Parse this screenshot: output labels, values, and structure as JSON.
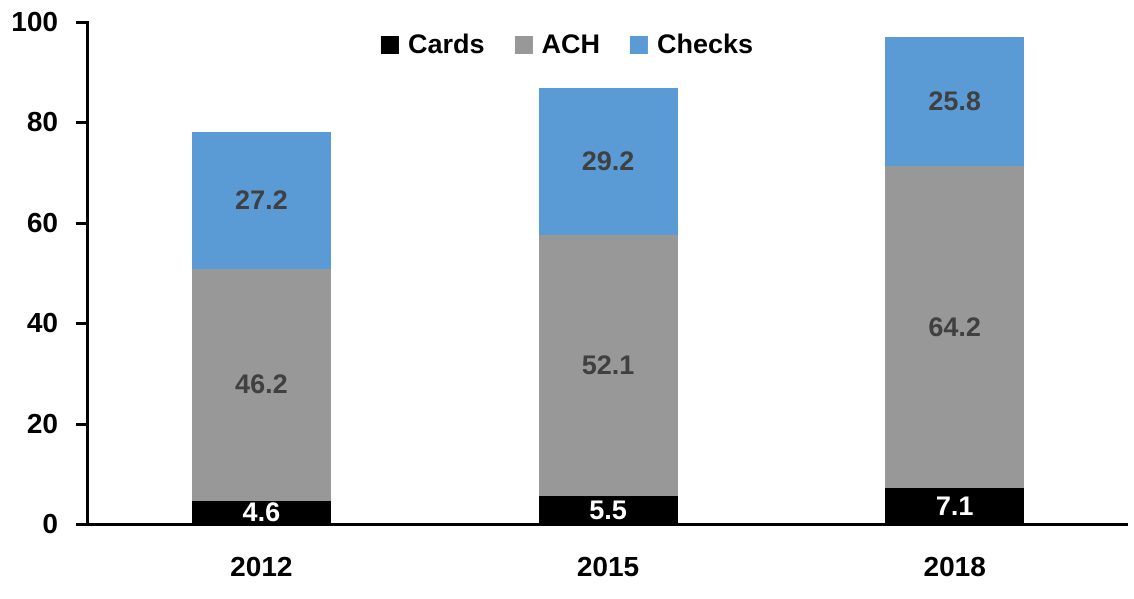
{
  "chart_data": {
    "type": "bar",
    "stacked": true,
    "title": "",
    "xlabel": "",
    "ylabel": "",
    "categories": [
      "2012",
      "2015",
      "2018"
    ],
    "series": [
      {
        "name": "Cards",
        "color": "#000000",
        "label_color": "#ffffff",
        "values": [
          4.6,
          5.5,
          7.1
        ]
      },
      {
        "name": "ACH",
        "color": "#989898",
        "label_color": "#404040",
        "values": [
          46.2,
          52.1,
          64.2
        ]
      },
      {
        "name": "Checks",
        "color": "#5B9BD5",
        "label_color": "#404040",
        "values": [
          27.2,
          29.2,
          25.8
        ]
      }
    ],
    "ylim": [
      0,
      100
    ],
    "yticks": [
      "0",
      "20",
      "40",
      "60",
      "80",
      "100"
    ],
    "grid": false,
    "legend_position": "top-center",
    "axis_color": "#000000"
  }
}
